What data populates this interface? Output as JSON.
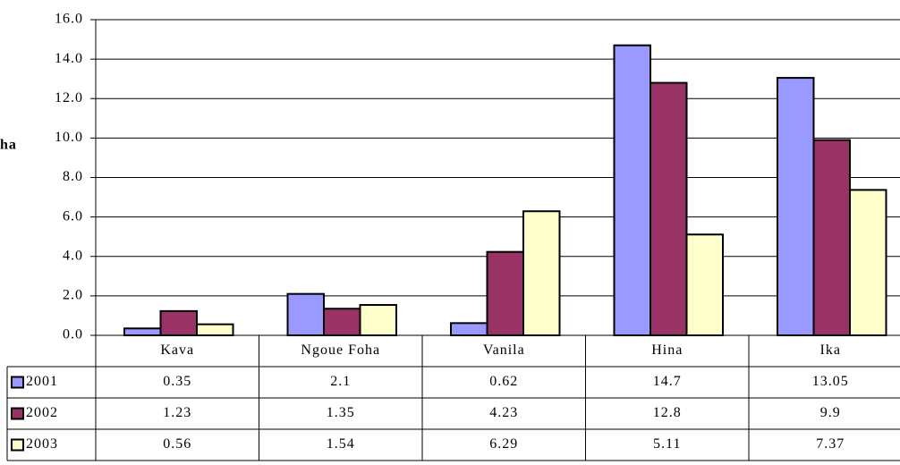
{
  "chart_data": {
    "type": "bar",
    "y_label": "ha",
    "categories": [
      "Kava",
      "Ngoue Foha",
      "Vanila",
      "Hina",
      "Ika"
    ],
    "series": [
      {
        "name": "2001",
        "color": "#9999ff",
        "values": [
          0.35,
          2.1,
          0.62,
          14.7,
          13.05
        ]
      },
      {
        "name": "2002",
        "color": "#993366",
        "values": [
          1.23,
          1.35,
          4.23,
          12.8,
          9.9
        ]
      },
      {
        "name": "2003",
        "color": "#ffffcc",
        "values": [
          0.56,
          1.54,
          6.29,
          5.11,
          7.37
        ]
      }
    ],
    "ylim": [
      0,
      16
    ],
    "yticks": [
      {
        "value": 0,
        "label": "0.0"
      },
      {
        "value": 2,
        "label": "2.0"
      },
      {
        "value": 4,
        "label": "4.0"
      },
      {
        "value": 6,
        "label": "6.0"
      },
      {
        "value": 8,
        "label": "8.0"
      },
      {
        "value": 10,
        "label": "10.0"
      },
      {
        "value": 12,
        "label": "12.0"
      },
      {
        "value": 14,
        "label": "14.0"
      },
      {
        "value": 16,
        "label": "16.0"
      }
    ],
    "grid": true,
    "data_table": true
  }
}
